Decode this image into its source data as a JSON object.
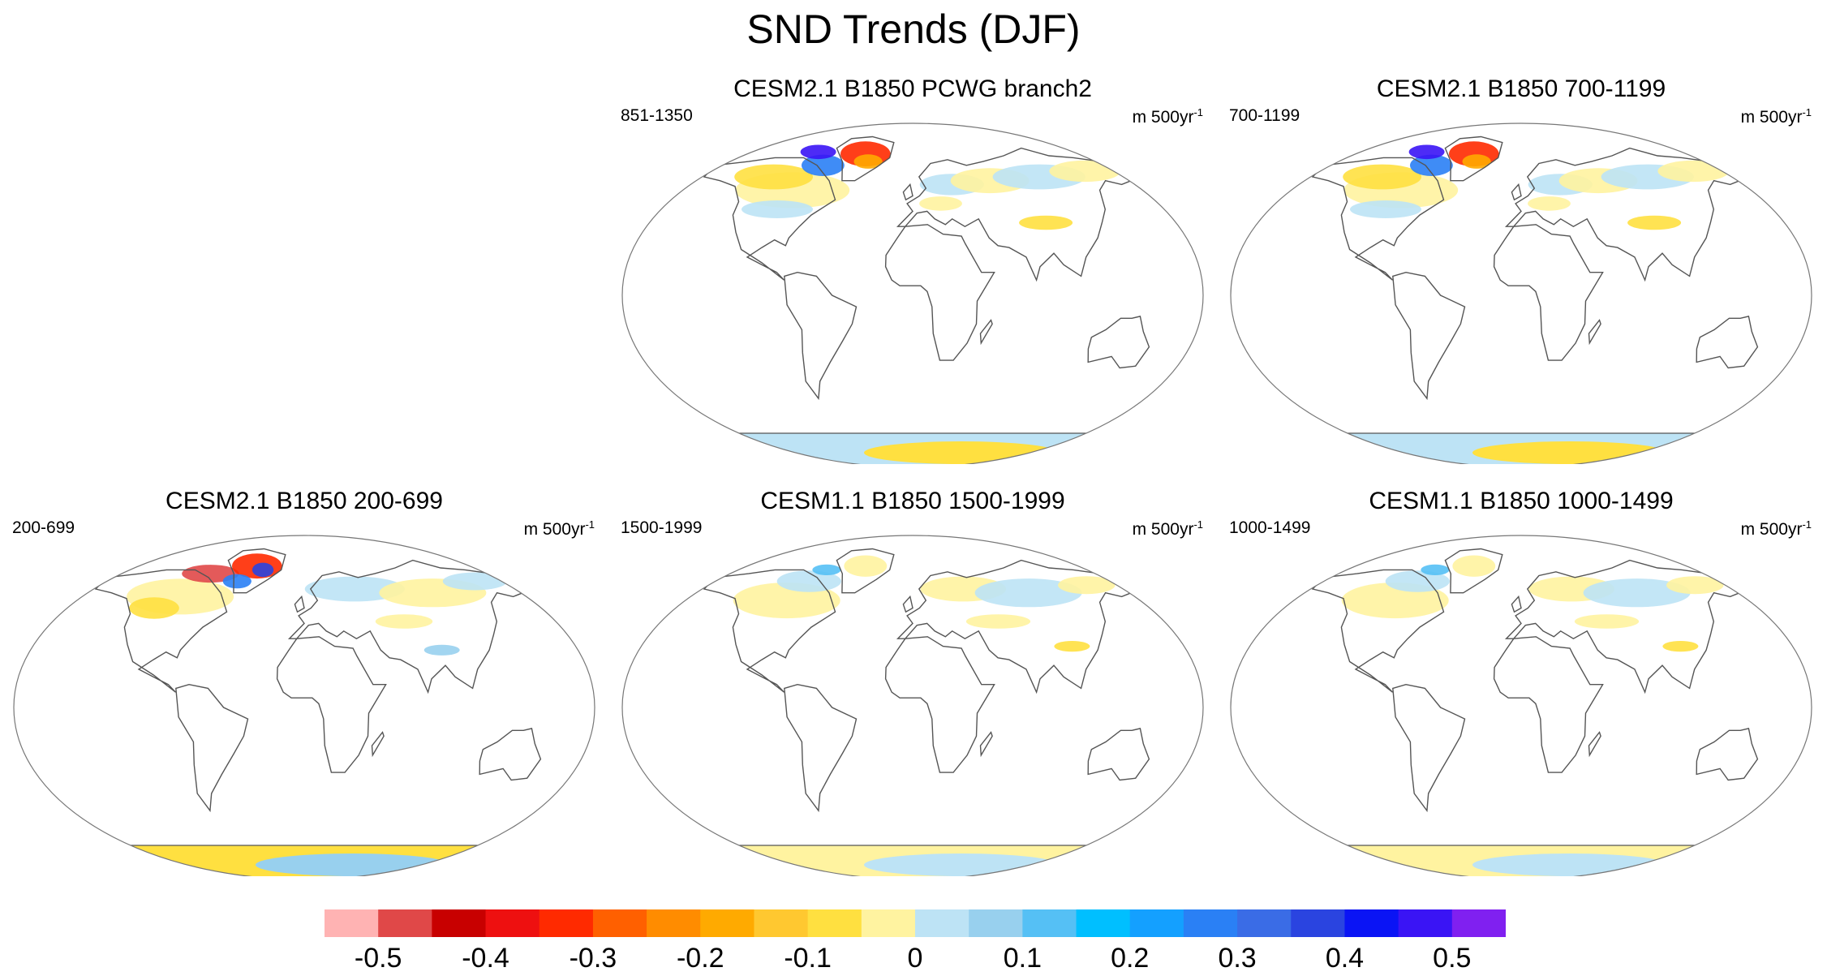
{
  "figure": {
    "title": "SND Trends (DJF)",
    "units_base": "m 500yr",
    "units_exp": "-1"
  },
  "panels": [
    {
      "id": "branch2",
      "title": "CESM2.1 B1850 PCWG branch2",
      "period": "851-1350",
      "pattern": "strong"
    },
    {
      "id": "cesm21-700",
      "title": "CESM2.1 B1850 700-1199",
      "period": "700-1199",
      "pattern": "strong"
    },
    {
      "id": "cesm21-200",
      "title": "CESM2.1 B1850 200-699",
      "period": "200-699",
      "pattern": "strongest"
    },
    {
      "id": "cesm11-1500",
      "title": "CESM1.1 B1850 1500-1999",
      "period": "1500-1999",
      "pattern": "weak"
    },
    {
      "id": "cesm11-1000",
      "title": "CESM1.1 B1850 1000-1499",
      "period": "1000-1499",
      "pattern": "weak"
    }
  ],
  "colorbar": {
    "colors": [
      "#ffb3b3",
      "#e04848",
      "#c80000",
      "#ee1010",
      "#ff2a00",
      "#ff6000",
      "#ff8c00",
      "#ffaa00",
      "#ffc830",
      "#ffe040",
      "#fff3a0",
      "#bde3f5",
      "#98d0ee",
      "#55c0f5",
      "#00bfff",
      "#14a0ff",
      "#2a80f5",
      "#3a6ce6",
      "#2a44e0",
      "#0a14f5",
      "#3a14f5",
      "#8020f0"
    ],
    "tick_labels": [
      "-0.5",
      "-0.4",
      "-0.3",
      "-0.2",
      "-0.1",
      "0",
      "0.1",
      "0.2",
      "0.3",
      "0.4",
      "0.5"
    ]
  }
}
